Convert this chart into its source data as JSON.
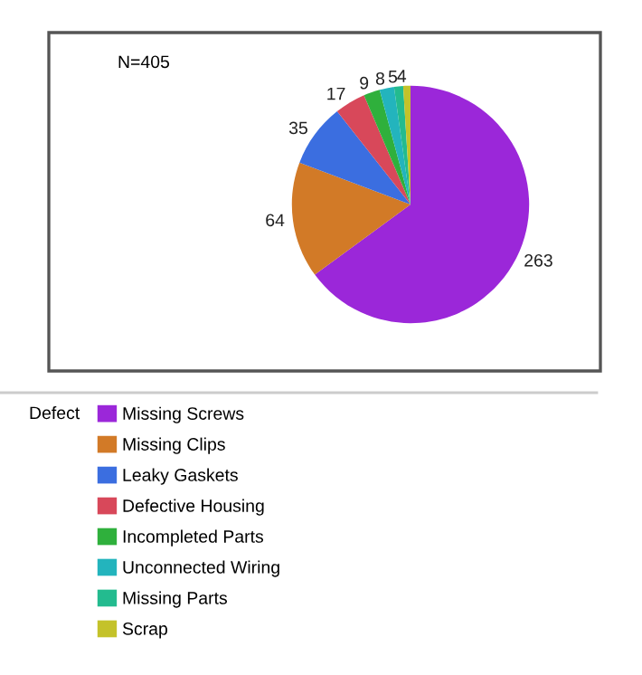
{
  "chart_data": {
    "type": "pie",
    "legend_title": "Defect",
    "annotations": [
      "N=405"
    ],
    "legend": "bottom",
    "data_labels": true,
    "categories": [
      "Missing Screws",
      "Missing Clips",
      "Leaky Gaskets",
      "Defective Housing",
      "Incompleted Parts",
      "Unconnected Wiring",
      "Missing Parts",
      "Scrap"
    ],
    "values": [
      263,
      64,
      35,
      17,
      9,
      8,
      5,
      4
    ],
    "colors": [
      "#9b27d9",
      "#d27a27",
      "#3b6ee0",
      "#d8485a",
      "#2fb03c",
      "#23b4bd",
      "#23bb8f",
      "#c4c22a"
    ]
  }
}
